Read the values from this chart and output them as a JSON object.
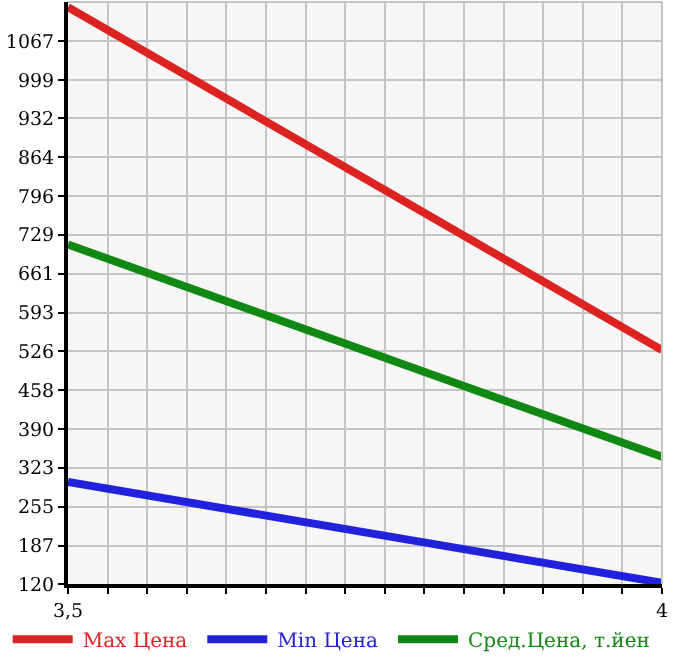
{
  "chart_data": {
    "type": "line",
    "x": [
      3.5,
      4
    ],
    "series": [
      {
        "name": "Max Цена",
        "color": "#dd2222",
        "values": [
          1126,
          528
        ]
      },
      {
        "name": "Min Цена",
        "color": "#2222dd",
        "values": [
          298,
          122
        ]
      },
      {
        "name": "Сред.Цена, т.йен",
        "color": "#118811",
        "values": [
          712,
          342
        ]
      }
    ],
    "xlim": [
      3.5,
      4
    ],
    "xticks": [
      {
        "value": 3.5,
        "label": "3,5"
      },
      {
        "value": 3.5333,
        "label": null
      },
      {
        "value": 3.5667,
        "label": null
      },
      {
        "value": 3.6,
        "label": null
      },
      {
        "value": 3.6333,
        "label": null
      },
      {
        "value": 3.6667,
        "label": null
      },
      {
        "value": 3.7,
        "label": null
      },
      {
        "value": 3.7333,
        "label": null
      },
      {
        "value": 3.7667,
        "label": null
      },
      {
        "value": 3.8,
        "label": null
      },
      {
        "value": 3.8333,
        "label": null
      },
      {
        "value": 3.8667,
        "label": null
      },
      {
        "value": 3.9,
        "label": null
      },
      {
        "value": 3.9333,
        "label": null
      },
      {
        "value": 3.9667,
        "label": null
      },
      {
        "value": 4,
        "label": "4"
      }
    ],
    "ylim": [
      120,
      1135
    ],
    "yticks": [
      120,
      187,
      255,
      323,
      390,
      458,
      526,
      593,
      661,
      729,
      796,
      864,
      932,
      999,
      1067
    ],
    "grid": true,
    "legend": "bottom",
    "marker": "none",
    "line_style": "solid"
  }
}
